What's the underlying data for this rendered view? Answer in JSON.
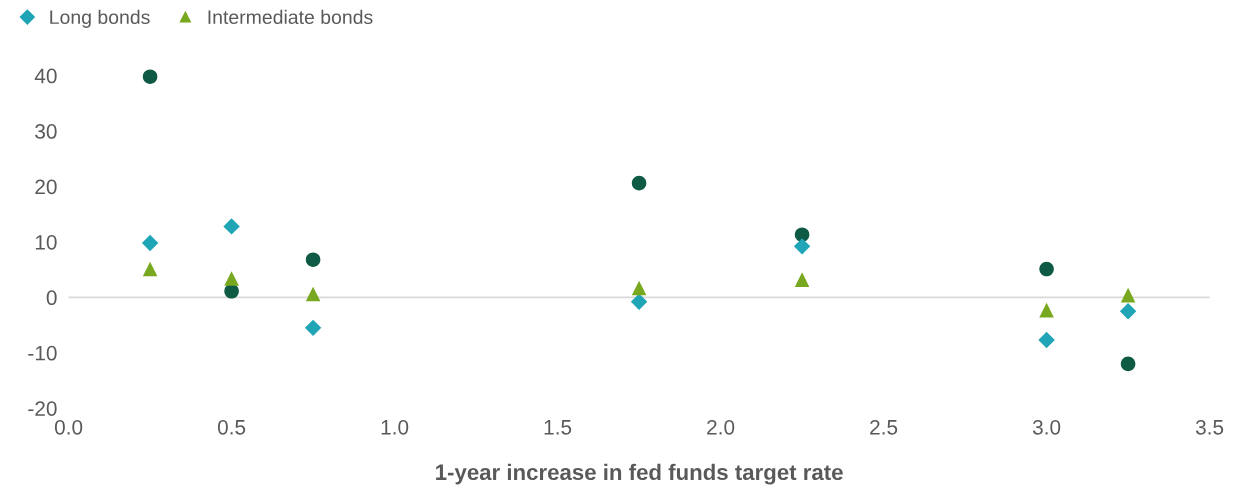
{
  "chart_data": {
    "type": "scatter",
    "xlabel": "1-year increase in fed funds target rate",
    "x": [
      0.25,
      0.5,
      0.75,
      1.75,
      2.25,
      3.0,
      3.25
    ],
    "series": [
      {
        "color": "#0f5a45",
        "marker": "circle",
        "values": [
          39.8,
          1.1,
          6.8,
          20.6,
          11.3,
          5.1,
          -12
        ]
      },
      {
        "name": "Long bonds",
        "color": "#1fa5b5",
        "marker": "diamond",
        "values": [
          9.8,
          12.8,
          -5.5,
          -0.8,
          9.2,
          -7.7,
          -2.5
        ]
      },
      {
        "name": "Intermediate bonds",
        "color": "#77a81f",
        "marker": "triangle",
        "values": [
          5.1,
          3.4,
          0.6,
          1.7,
          3.2,
          -2.3,
          0.4
        ]
      }
    ],
    "xlim": [
      0,
      3.5
    ],
    "xticks": [
      {
        "value": 0,
        "label": "0.0"
      },
      {
        "value": 0.5,
        "label": "0.5"
      },
      {
        "value": 1,
        "label": "1.0"
      },
      {
        "value": 1.5,
        "label": "1.5"
      },
      {
        "value": 2,
        "label": "2.0"
      },
      {
        "value": 2.5,
        "label": "2.5"
      },
      {
        "value": 3,
        "label": "3.0"
      },
      {
        "value": 3.5,
        "label": "3.5"
      }
    ],
    "ylim": [
      -20,
      40
    ],
    "yticks": [
      -20,
      -10,
      0,
      10,
      20,
      30,
      40
    ],
    "ref_lines": [
      {
        "axis": "y",
        "value": 0,
        "color": "#d9d9d9"
      }
    ],
    "legend": "top left",
    "grid": false
  }
}
